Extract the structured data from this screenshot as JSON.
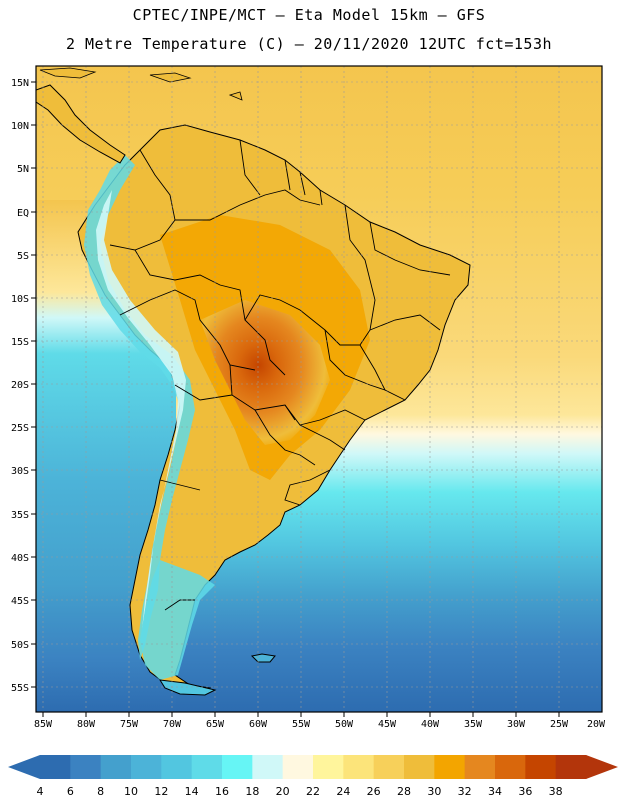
{
  "header": {
    "line1": "CPTEC/INPE/MCT –  Eta Model 15km – GFS",
    "line2": "2 Metre Temperature (C) – 20/11/2020 12UTC fct=153h"
  },
  "map": {
    "lat_labels": [
      "15N",
      "10N",
      "5N",
      "EQ",
      "5S",
      "10S",
      "15S",
      "20S",
      "25S",
      "30S",
      "35S",
      "40S",
      "45S",
      "50S",
      "55S"
    ],
    "lon_labels": [
      "85W",
      "80W",
      "75W",
      "70W",
      "65W",
      "60W",
      "55W",
      "50W",
      "45W",
      "40W",
      "35W",
      "30W",
      "25W",
      "20W"
    ]
  },
  "colorbar": {
    "labels": [
      "4",
      "6",
      "8",
      "10",
      "12",
      "14",
      "16",
      "18",
      "20",
      "22",
      "24",
      "26",
      "28",
      "30",
      "32",
      "34",
      "36",
      "38"
    ],
    "colors": [
      "#2d6cb0",
      "#3b82c1",
      "#44a0cd",
      "#4cb3d8",
      "#52c6e0",
      "#5fdbe8",
      "#66f5f5",
      "#d0f8f8",
      "#fff8e0",
      "#fff59c",
      "#fce47a",
      "#f7d05a",
      "#efbd3a",
      "#f3a500",
      "#e5871f",
      "#d9670c",
      "#c54500",
      "#b3350b"
    ]
  }
}
